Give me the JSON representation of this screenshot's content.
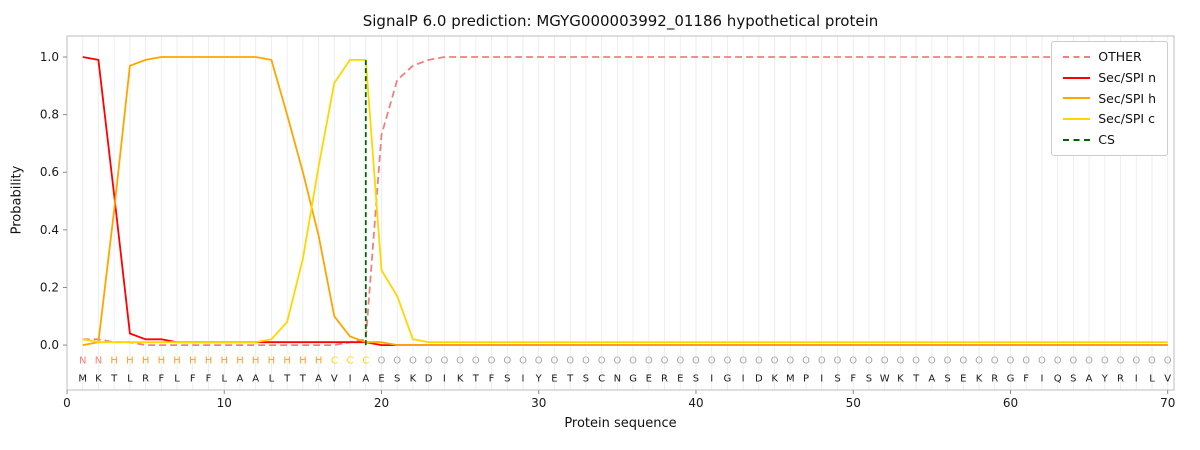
{
  "chart_data": {
    "type": "line",
    "title": "SignalP 6.0 prediction: MGYG000003992_01186 hypothetical protein",
    "xlabel": "Protein sequence",
    "ylabel": "Probability",
    "x_range": [
      1,
      70
    ],
    "xlim": [
      0,
      70.4
    ],
    "ylim": [
      -0.156,
      1.073
    ],
    "x_ticks": [
      0,
      10,
      20,
      30,
      40,
      50,
      60,
      70
    ],
    "y_tick_labels": [
      "0.0",
      "0.2",
      "0.4",
      "0.6",
      "0.8",
      "1.0"
    ],
    "grid": "vertical line per residue",
    "legend_position": "upper right",
    "series": [
      {
        "name": "OTHER",
        "color": "#f08080",
        "dash": true,
        "values": [
          0.02,
          0.02,
          0.01,
          0.01,
          0.0,
          0.0,
          0.0,
          0.0,
          0.0,
          0.0,
          0.0,
          0.0,
          0.0,
          0.0,
          0.0,
          0.0,
          0.0,
          0.01,
          0.02,
          0.73,
          0.92,
          0.97,
          0.99,
          1.0,
          1.0,
          1.0,
          1.0,
          1.0,
          1.0,
          1.0,
          1.0,
          1.0,
          1.0,
          1.0,
          1.0,
          1.0,
          1.0,
          1.0,
          1.0,
          1.0,
          1.0,
          1.0,
          1.0,
          1.0,
          1.0,
          1.0,
          1.0,
          1.0,
          1.0,
          1.0,
          1.0,
          1.0,
          1.0,
          1.0,
          1.0,
          1.0,
          1.0,
          1.0,
          1.0,
          1.0,
          1.0,
          1.0,
          1.0,
          1.0,
          1.0,
          1.0,
          1.0,
          1.0,
          1.0,
          1.0
        ]
      },
      {
        "name": "Sec/SPI n",
        "color": "#ff0000",
        "dash": false,
        "values": [
          1.0,
          0.99,
          0.52,
          0.04,
          0.02,
          0.02,
          0.01,
          0.01,
          0.01,
          0.01,
          0.01,
          0.01,
          0.01,
          0.01,
          0.01,
          0.01,
          0.01,
          0.01,
          0.01,
          0.0,
          0.0,
          0.0,
          0.0,
          0.0,
          0.0,
          0.0,
          0.0,
          0.0,
          0.0,
          0.0,
          0.0,
          0.0,
          0.0,
          0.0,
          0.0,
          0.0,
          0.0,
          0.0,
          0.0,
          0.0,
          0.0,
          0.0,
          0.0,
          0.0,
          0.0,
          0.0,
          0.0,
          0.0,
          0.0,
          0.0,
          0.0,
          0.0,
          0.0,
          0.0,
          0.0,
          0.0,
          0.0,
          0.0,
          0.0,
          0.0,
          0.0,
          0.0,
          0.0,
          0.0,
          0.0,
          0.0,
          0.0,
          0.0,
          0.0,
          0.0
        ]
      },
      {
        "name": "Sec/SPI h",
        "color": "#ffa500",
        "dash": false,
        "values": [
          0.0,
          0.01,
          0.47,
          0.97,
          0.99,
          1.0,
          1.0,
          1.0,
          1.0,
          1.0,
          1.0,
          1.0,
          0.99,
          0.8,
          0.6,
          0.38,
          0.1,
          0.03,
          0.01,
          0.01,
          0.0,
          0.0,
          0.0,
          0.0,
          0.0,
          0.0,
          0.0,
          0.0,
          0.0,
          0.0,
          0.0,
          0.0,
          0.0,
          0.0,
          0.0,
          0.0,
          0.0,
          0.0,
          0.0,
          0.0,
          0.0,
          0.0,
          0.0,
          0.0,
          0.0,
          0.0,
          0.0,
          0.0,
          0.0,
          0.0,
          0.0,
          0.0,
          0.0,
          0.0,
          0.0,
          0.0,
          0.0,
          0.0,
          0.0,
          0.0,
          0.0,
          0.0,
          0.0,
          0.0,
          0.0,
          0.0,
          0.0,
          0.0,
          0.0,
          0.0
        ]
      },
      {
        "name": "Sec/SPI c",
        "color": "#ffd700",
        "dash": false,
        "values": [
          0.02,
          0.01,
          0.01,
          0.01,
          0.01,
          0.01,
          0.01,
          0.01,
          0.01,
          0.01,
          0.01,
          0.01,
          0.02,
          0.08,
          0.3,
          0.62,
          0.91,
          0.99,
          0.99,
          0.26,
          0.17,
          0.02,
          0.01,
          0.01,
          0.01,
          0.01,
          0.01,
          0.01,
          0.01,
          0.01,
          0.01,
          0.01,
          0.01,
          0.01,
          0.01,
          0.01,
          0.01,
          0.01,
          0.01,
          0.01,
          0.01,
          0.01,
          0.01,
          0.01,
          0.01,
          0.01,
          0.01,
          0.01,
          0.01,
          0.01,
          0.01,
          0.01,
          0.01,
          0.01,
          0.01,
          0.01,
          0.01,
          0.01,
          0.01,
          0.01,
          0.01,
          0.01,
          0.01,
          0.01,
          0.01,
          0.01,
          0.01,
          0.01,
          0.01,
          0.01
        ]
      }
    ],
    "cs_marker": {
      "name": "CS",
      "color": "#006400",
      "dash": true,
      "position": 19,
      "top": 0.99
    },
    "residues": [
      "M",
      "K",
      "T",
      "L",
      "R",
      "F",
      "L",
      "F",
      "F",
      "L",
      "A",
      "A",
      "L",
      "T",
      "T",
      "A",
      "V",
      "I",
      "A",
      "E",
      "S",
      "K",
      "D",
      "I",
      "K",
      "T",
      "F",
      "S",
      "I",
      "Y",
      "E",
      "T",
      "S",
      "C",
      "N",
      "G",
      "E",
      "R",
      "E",
      "S",
      "I",
      "G",
      "I",
      "D",
      "K",
      "M",
      "P",
      "I",
      "S",
      "F",
      "S",
      "W",
      "K",
      "T",
      "A",
      "S",
      "E",
      "K",
      "R",
      "G",
      "F",
      "I",
      "Q",
      "S",
      "A",
      "Y",
      "R",
      "I",
      "L",
      "V"
    ],
    "region_labels": [
      "N",
      "N",
      "H",
      "H",
      "H",
      "H",
      "H",
      "H",
      "H",
      "H",
      "H",
      "H",
      "H",
      "H",
      "H",
      "H",
      "C",
      "C",
      "C",
      "O",
      "O",
      "O",
      "O",
      "O",
      "O",
      "O",
      "O",
      "O",
      "O",
      "O",
      "O",
      "O",
      "O",
      "O",
      "O",
      "O",
      "O",
      "O",
      "O",
      "O",
      "O",
      "O",
      "O",
      "O",
      "O",
      "O",
      "O",
      "O",
      "O",
      "O",
      "O",
      "O",
      "O",
      "O",
      "O",
      "O",
      "O",
      "O",
      "O",
      "O",
      "O",
      "O",
      "O",
      "O",
      "O",
      "O",
      "O",
      "O",
      "O",
      "O"
    ],
    "region_colors": {
      "N": "#fa8072",
      "H": "#ffa500",
      "C": "#ffd700",
      "O": "#a6a6a6"
    },
    "residue_color": "#1a1a1a"
  }
}
